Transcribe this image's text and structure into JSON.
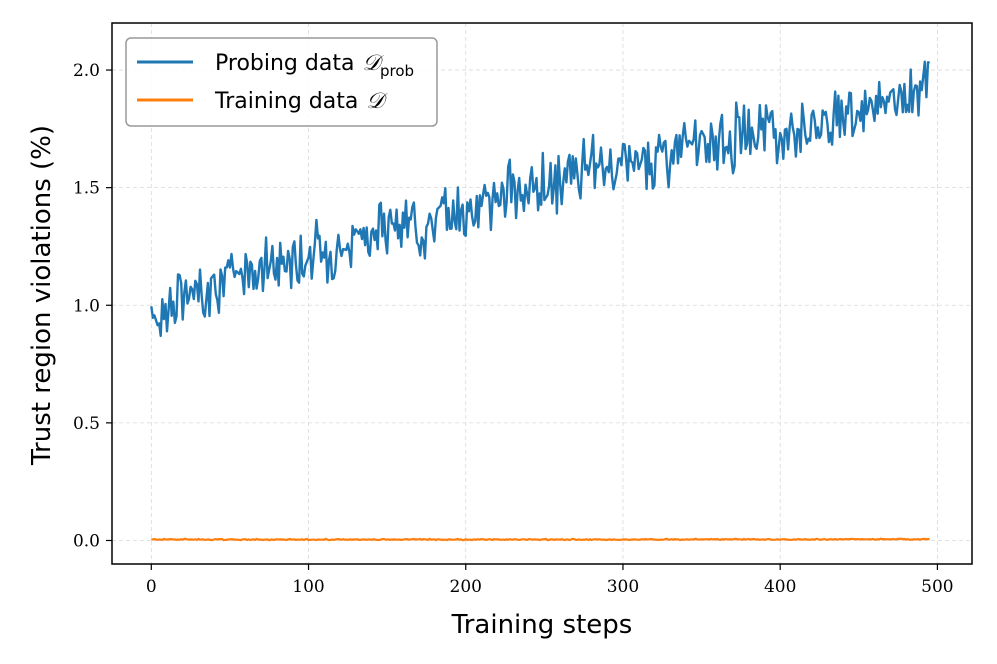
{
  "chart_data": {
    "type": "line",
    "title": "",
    "xlabel": "Training steps",
    "ylabel": "Trust region violations (%)",
    "xlim": [
      -25,
      522
    ],
    "ylim": [
      -0.1,
      2.2
    ],
    "xticks": [
      0,
      100,
      200,
      300,
      400,
      500
    ],
    "xtick_labels": [
      "0",
      "100",
      "200",
      "300",
      "400",
      "500"
    ],
    "yticks": [
      0.0,
      0.5,
      1.0,
      1.5,
      2.0
    ],
    "ytick_labels": [
      "0.0",
      "0.5",
      "1.0",
      "1.5",
      "2.0"
    ],
    "grid": true,
    "legend_position": "top-left",
    "colors": {
      "probing": "#1f77b4",
      "training": "#ff7f0e",
      "grid": "#d9d9d9",
      "legend_border": "#999999"
    },
    "legend": [
      {
        "name": "Probing data",
        "math": "𝒟",
        "sub": "prob",
        "color": "#1f77b4"
      },
      {
        "name": "Training data",
        "math": "𝒟",
        "sub": "",
        "color": "#ff7f0e"
      }
    ],
    "series": [
      {
        "name": "Probing data Dprob",
        "x": [
          0,
          10,
          20,
          30,
          40,
          50,
          60,
          70,
          80,
          90,
          100,
          110,
          120,
          130,
          140,
          150,
          160,
          170,
          180,
          190,
          200,
          210,
          220,
          230,
          240,
          250,
          260,
          270,
          280,
          290,
          300,
          310,
          320,
          330,
          340,
          350,
          360,
          370,
          380,
          390,
          400,
          410,
          420,
          430,
          440,
          450,
          460,
          470,
          480,
          490,
          495
        ],
        "values": [
          0.95,
          0.99,
          1.03,
          1.06,
          1.09,
          1.12,
          1.14,
          1.17,
          1.18,
          1.2,
          1.21,
          1.23,
          1.25,
          1.28,
          1.3,
          1.32,
          1.33,
          1.35,
          1.37,
          1.39,
          1.41,
          1.43,
          1.46,
          1.48,
          1.5,
          1.5,
          1.52,
          1.54,
          1.56,
          1.58,
          1.6,
          1.62,
          1.64,
          1.66,
          1.67,
          1.68,
          1.7,
          1.71,
          1.73,
          1.75,
          1.74,
          1.76,
          1.78,
          1.79,
          1.81,
          1.82,
          1.84,
          1.86,
          1.88,
          1.92,
          1.98
        ]
      },
      {
        "name": "Training data D",
        "x": [
          0,
          50,
          100,
          150,
          200,
          250,
          300,
          350,
          400,
          450,
          495
        ],
        "values": [
          0.005,
          0.004,
          0.004,
          0.004,
          0.004,
          0.004,
          0.004,
          0.005,
          0.004,
          0.005,
          0.005
        ]
      }
    ]
  }
}
